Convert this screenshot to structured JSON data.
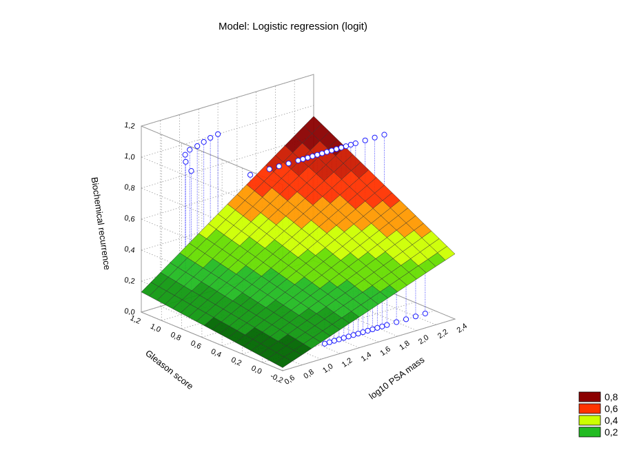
{
  "chart_data": {
    "type": "surface3d",
    "title": "Model: Logistic regression (logit)",
    "xlabel": "log10 PSA mass",
    "ylabel": "Gleason score",
    "zlabel": "Biochemical recurrence",
    "x_ticks": [
      "0,6",
      "0,8",
      "1,0",
      "1,2",
      "1,4",
      "1,6",
      "1,8",
      "2,0",
      "2,2",
      "2,4"
    ],
    "y_ticks": [
      "-0,2",
      "0,0",
      "0,2",
      "0,4",
      "0,6",
      "0,8",
      "1,0",
      "1,2"
    ],
    "z_ticks": [
      "0,0",
      "0,2",
      "0,4",
      "0,6",
      "0,8",
      "1,0",
      "1,2"
    ],
    "xlim": [
      0.6,
      2.4
    ],
    "ylim": [
      -0.2,
      1.2
    ],
    "zlim": [
      0.0,
      1.2
    ],
    "surface_corner_values": [
      {
        "x": 0.6,
        "y": -0.2,
        "z": 0.02
      },
      {
        "x": 2.4,
        "y": -0.2,
        "z": 0.42
      },
      {
        "x": 0.6,
        "y": 1.2,
        "z": 0.13
      },
      {
        "x": 2.4,
        "y": 1.2,
        "z": 0.93
      }
    ],
    "legend": {
      "placement": "bottom-right",
      "entries": [
        {
          "label": "0,8",
          "color": "#8b0000"
        },
        {
          "label": "0,6",
          "color": "#ff3300"
        },
        {
          "label": "0,4",
          "color": "#ccff00"
        },
        {
          "label": "0,2",
          "color": "#22bb22"
        }
      ]
    },
    "colors": {
      "marker_stroke": "#1a1aff",
      "marker_fill": "#ffffff",
      "mesh": "#333333"
    },
    "observations_z1": [
      {
        "x": 0.7,
        "y": 0.8
      },
      {
        "x": 0.8,
        "y": 0.95
      },
      {
        "x": 0.9,
        "y": 1.05
      },
      {
        "x": 1.0,
        "y": 1.1
      },
      {
        "x": 1.1,
        "y": 1.12
      },
      {
        "x": 1.2,
        "y": 1.15
      },
      {
        "x": 1.3,
        "y": 1.18
      },
      {
        "x": 1.4,
        "y": 1.2
      },
      {
        "x": 1.0,
        "y": 0.5
      },
      {
        "x": 1.2,
        "y": 0.5
      },
      {
        "x": 1.3,
        "y": 0.5
      },
      {
        "x": 1.4,
        "y": 0.5
      },
      {
        "x": 1.5,
        "y": 0.5
      },
      {
        "x": 1.55,
        "y": 0.5
      },
      {
        "x": 1.6,
        "y": 0.5
      },
      {
        "x": 1.65,
        "y": 0.5
      },
      {
        "x": 1.7,
        "y": 0.5
      },
      {
        "x": 1.75,
        "y": 0.5
      },
      {
        "x": 1.8,
        "y": 0.5
      },
      {
        "x": 1.85,
        "y": 0.5
      },
      {
        "x": 1.9,
        "y": 0.5
      },
      {
        "x": 1.95,
        "y": 0.5
      },
      {
        "x": 2.0,
        "y": 0.5
      },
      {
        "x": 2.05,
        "y": 0.5
      },
      {
        "x": 2.1,
        "y": 0.5
      },
      {
        "x": 2.2,
        "y": 0.5
      },
      {
        "x": 2.3,
        "y": 0.5
      },
      {
        "x": 2.4,
        "y": 0.5
      }
    ],
    "observations_z0": [
      {
        "x": 1.25,
        "y": 0.0
      },
      {
        "x": 1.3,
        "y": 0.0
      },
      {
        "x": 1.35,
        "y": 0.0
      },
      {
        "x": 1.4,
        "y": 0.0
      },
      {
        "x": 1.45,
        "y": 0.0
      },
      {
        "x": 1.5,
        "y": 0.0
      },
      {
        "x": 1.55,
        "y": 0.0
      },
      {
        "x": 1.6,
        "y": 0.0
      },
      {
        "x": 1.65,
        "y": 0.0
      },
      {
        "x": 1.7,
        "y": 0.0
      },
      {
        "x": 1.75,
        "y": 0.0
      },
      {
        "x": 1.8,
        "y": 0.0
      },
      {
        "x": 1.85,
        "y": 0.0
      },
      {
        "x": 1.9,
        "y": 0.0
      },
      {
        "x": 2.0,
        "y": 0.0
      },
      {
        "x": 2.1,
        "y": 0.0
      },
      {
        "x": 2.2,
        "y": 0.0
      },
      {
        "x": 2.3,
        "y": 0.0
      }
    ]
  }
}
